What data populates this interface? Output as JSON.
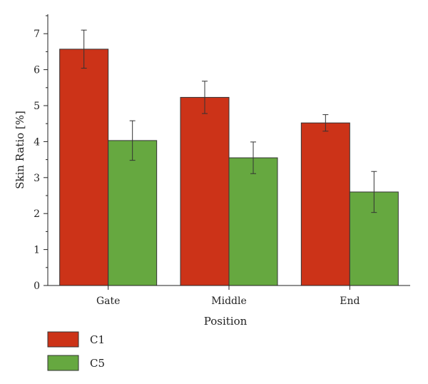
{
  "chart_data": {
    "type": "bar",
    "title": "",
    "xlabel": "Position",
    "ylabel": "Skin Ratio [%]",
    "categories": [
      "Gate",
      "Middle",
      "End"
    ],
    "ylim": [
      0,
      7.5
    ],
    "yticks": [
      0,
      1,
      2,
      3,
      4,
      5,
      6,
      7
    ],
    "grid": false,
    "legend": "bottom-left",
    "series": [
      {
        "name": "C1",
        "color": "#cc3318",
        "values": [
          6.57,
          5.23,
          4.52
        ],
        "error": [
          0.53,
          0.45,
          0.23
        ]
      },
      {
        "name": "C5",
        "color": "#66a840",
        "values": [
          4.03,
          3.55,
          2.6
        ],
        "error": [
          0.55,
          0.44,
          0.57
        ]
      }
    ]
  }
}
